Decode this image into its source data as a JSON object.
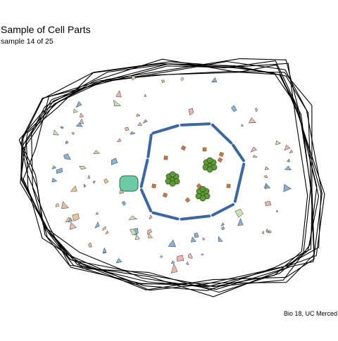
{
  "title": "Sample of Cell Parts",
  "subtitle": "sample 14 of 25",
  "caption": "Bio 18, UC Merced",
  "colors": {
    "membrane": "#000000",
    "nuclear_envelope": "#3d66a0",
    "nucleolus_like": "#6ccaa4",
    "chromatin_green": "#5e9a38",
    "ribosome_orange": "#c8794a",
    "organelle_blue": "#8ab2d6",
    "organelle_tan": "#e6c79a",
    "organelle_green": "#cde0b0",
    "organelle_pink": "#e8b9b0"
  }
}
